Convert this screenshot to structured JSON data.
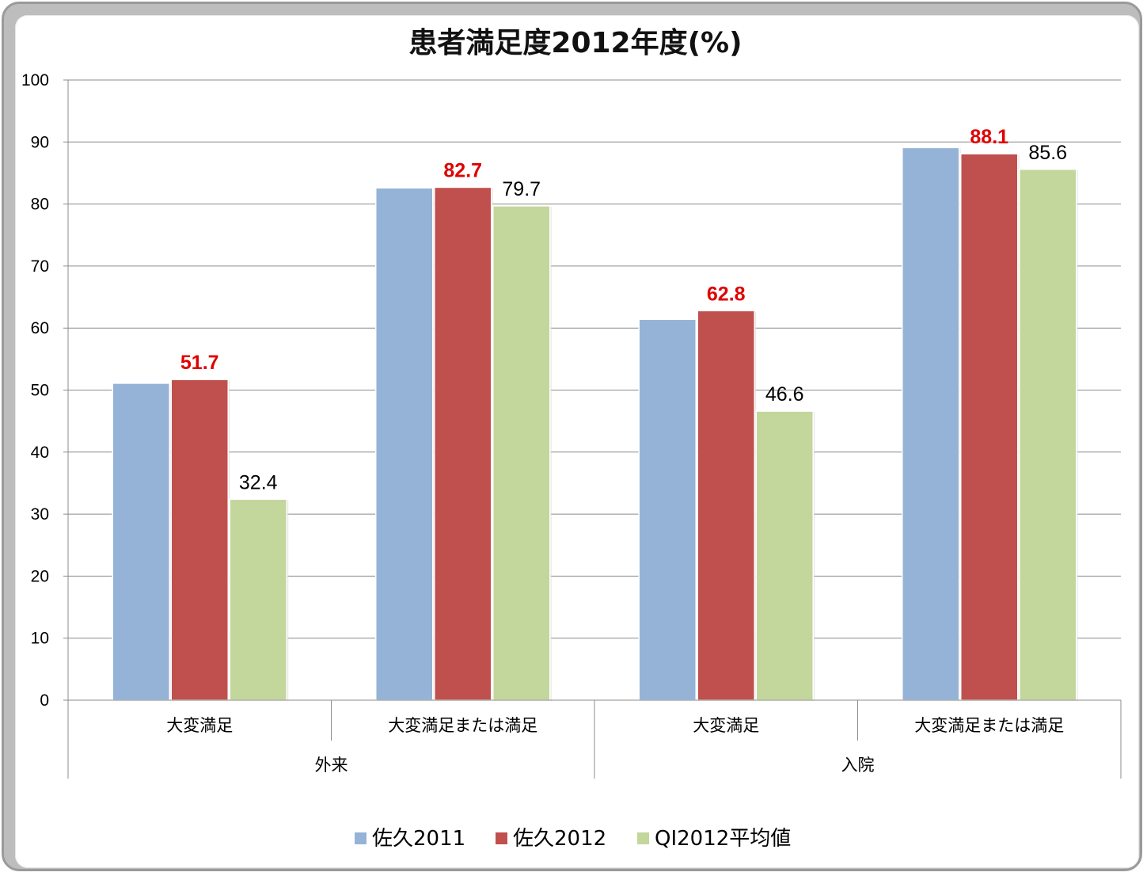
{
  "chart_data": {
    "type": "bar",
    "title": "患者満足度2012年度(%)",
    "ylim": [
      0,
      100
    ],
    "yticks": [
      0,
      10,
      20,
      30,
      40,
      50,
      60,
      70,
      80,
      90,
      100
    ],
    "categories": [
      "大変満足",
      "大変満足または満足",
      "大変満足",
      "大変満足または満足"
    ],
    "groups": [
      {
        "label": "外来",
        "span": [
          0,
          1
        ]
      },
      {
        "label": "入院",
        "span": [
          2,
          3
        ]
      }
    ],
    "series": [
      {
        "name": "佐久2011",
        "color": "#95b3d7",
        "values": [
          51.1,
          82.6,
          61.4,
          89.1
        ],
        "labels": [
          null,
          null,
          null,
          null
        ],
        "label_color": "#000000",
        "label_bold": false
      },
      {
        "name": "佐久2012",
        "color": "#c0504d",
        "values": [
          51.7,
          82.7,
          62.8,
          88.1
        ],
        "labels": [
          "51.7",
          "82.7",
          "62.8",
          "88.1"
        ],
        "label_color": "#e00000",
        "label_bold": true
      },
      {
        "name": "QI2012平均値",
        "color": "#c3d69b",
        "values": [
          32.4,
          79.7,
          46.6,
          85.6
        ],
        "labels": [
          "32.4",
          "79.7",
          "46.6",
          "85.6"
        ],
        "label_color": "#000000",
        "label_bold": false
      }
    ],
    "grid": true,
    "legend": "bottom"
  }
}
